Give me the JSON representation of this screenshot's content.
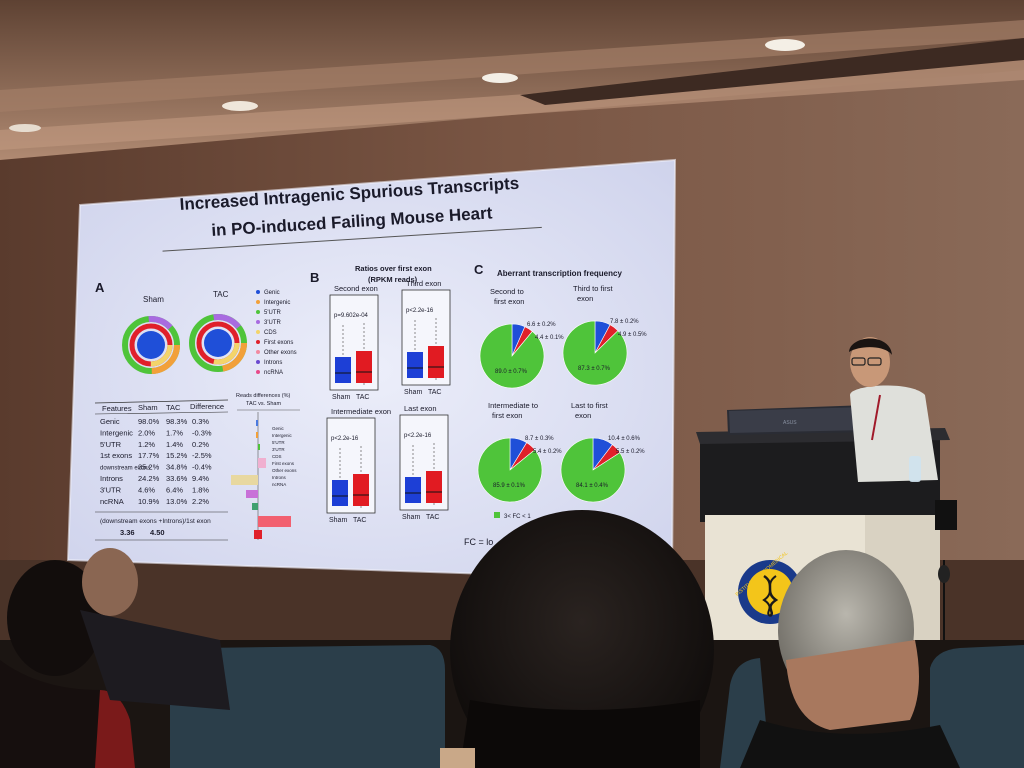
{
  "slide": {
    "title_line1": "Increased Intragenic Spurious Transcripts",
    "title_line2": "in PO-induced Failing Mouse Heart",
    "panel_a": {
      "label": "A",
      "donut_labels": [
        "Sham",
        "TAC"
      ],
      "legend": [
        "Genic",
        "Intergenic",
        "5'UTR",
        "3'UTR",
        "CDS",
        "First exons",
        "Other exons",
        "Introns",
        "ncRNA"
      ],
      "table_headers": [
        "Features",
        "Sham",
        "TAC",
        "Difference"
      ],
      "table_rows": [
        [
          "Genic",
          "98.0%",
          "98.3%",
          "0.3%"
        ],
        [
          "Intergenic",
          "2.0%",
          "1.7%",
          "-0.3%"
        ],
        [
          "5'UTR",
          "1.2%",
          "1.4%",
          "0.2%"
        ],
        [
          "1st exons",
          "17.7%",
          "15.2%",
          "-2.5%"
        ],
        [
          "downstream exons",
          "35.2%",
          "34.8%",
          "-0.4%"
        ],
        [
          "Introns",
          "24.2%",
          "33.6%",
          "9.4%"
        ],
        [
          "3'UTR",
          "4.6%",
          "6.4%",
          "1.8%"
        ],
        [
          "ncRNA",
          "10.9%",
          "13.0%",
          "2.2%"
        ]
      ],
      "ratio_row_label": "(downstream exons +Introns)/1st exon",
      "ratio_values": [
        "3.36",
        "4.50"
      ],
      "bar_title": "Reads differences (%)",
      "bar_subtitle": "TAC vs. Sham"
    },
    "panel_b": {
      "label": "B",
      "title_line1": "Ratios over first exon",
      "title_line2": "(RPKM reads)",
      "plots": [
        {
          "name": "Second exon",
          "p": "p=9.602e-04"
        },
        {
          "name": "Third exon",
          "p": "p<2.2e-16"
        },
        {
          "name": "Intermediate exon",
          "p": "p<2.2e-16"
        },
        {
          "name": "Last exon",
          "p": "p<2.2e-16"
        }
      ],
      "x_labels": [
        "Sham",
        "TAC"
      ]
    },
    "panel_c": {
      "label": "C",
      "title": "Aberrant transcription frequency",
      "pies": [
        {
          "title_l1": "Second to",
          "title_l2": "first exon",
          "main": "89.0 ± 0.7%",
          "a": "6.6 ± 0.2%",
          "b": "4.4 ± 0.1%"
        },
        {
          "title_l1": "Third to first",
          "title_l2": "exon",
          "main": "87.3 ± 0.7%",
          "a": "7.8 ± 0.2%",
          "b": "4.9 ± 0.5%"
        },
        {
          "title_l1": "Intermediate to",
          "title_l2": "first exon",
          "main": "85.9 ± 0.1%",
          "a": "8.7 ± 0.3%",
          "b": "5.4 ± 0.2%"
        },
        {
          "title_l1": "Last to first",
          "title_l2": "exon",
          "main": "84.1 ± 0.4%",
          "a": "10.4 ± 0.6%",
          "b": "5.5 ± 0.2%"
        }
      ],
      "legend_item": "3< FC < 1",
      "footnote": "FC = lo"
    }
  },
  "podium": {
    "laptop_brand": "ASUS",
    "logo_text": "INSTITUTE OF BIOMEDICAL"
  },
  "colors": {
    "pie_green": "#4fc43a",
    "pie_blue": "#1f4fd8",
    "pie_red": "#e0202a",
    "box_blue": "#1d3fd6",
    "box_red": "#e11b22",
    "slide_bg": "#dfe2f3",
    "wall": "#6b4a3a"
  }
}
